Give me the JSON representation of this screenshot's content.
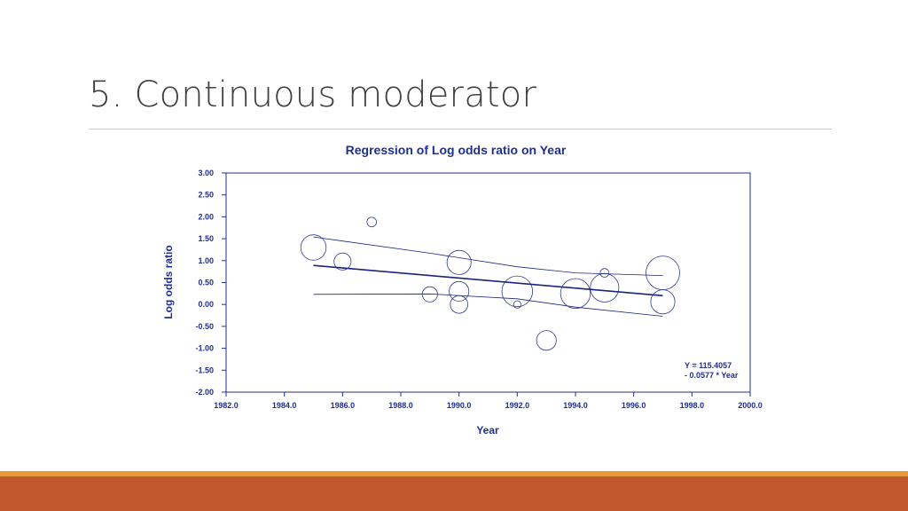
{
  "slide": {
    "title": "5.  Continuous moderator"
  },
  "chart_data": {
    "type": "scatter",
    "title": "Regression of Log odds ratio on Year",
    "xlabel": "Year",
    "ylabel": "Log odds ratio",
    "xlim": [
      1982,
      2000
    ],
    "ylim": [
      -2,
      3
    ],
    "xticks": [
      "1982.0",
      "1984.0",
      "1986.0",
      "1988.0",
      "1990.0",
      "1992.0",
      "1994.0",
      "1996.0",
      "1998.0",
      "2000.0"
    ],
    "yticks": [
      "3.00",
      "2.50",
      "2.00",
      "1.50",
      "1.00",
      "0.50",
      "0.00",
      "-0.50",
      "-1.00",
      "-1.50",
      "-2.00"
    ],
    "grid": false,
    "colors": {
      "text": "#1f2f8f",
      "marker": "#2d3a8c",
      "line": "#1a237e"
    },
    "points": [
      {
        "x": 1985.0,
        "y": 1.3,
        "weight": 0.58
      },
      {
        "x": 1986.0,
        "y": 0.98,
        "weight": 0.39
      },
      {
        "x": 1987.0,
        "y": 1.88,
        "weight": 0.22
      },
      {
        "x": 1989.0,
        "y": 0.23,
        "weight": 0.35
      },
      {
        "x": 1990.0,
        "y": 0.96,
        "weight": 0.55
      },
      {
        "x": 1990.0,
        "y": 0.3,
        "weight": 0.45
      },
      {
        "x": 1990.0,
        "y": 0.0,
        "weight": 0.4
      },
      {
        "x": 1992.0,
        "y": 0.3,
        "weight": 0.7
      },
      {
        "x": 1992.0,
        "y": 0.0,
        "weight": 0.17
      },
      {
        "x": 1993.0,
        "y": -0.82,
        "weight": 0.45
      },
      {
        "x": 1994.0,
        "y": 0.25,
        "weight": 0.68
      },
      {
        "x": 1995.0,
        "y": 0.38,
        "weight": 0.65
      },
      {
        "x": 1995.0,
        "y": 0.72,
        "weight": 0.2
      },
      {
        "x": 1997.0,
        "y": 0.72,
        "weight": 0.77
      },
      {
        "x": 1997.0,
        "y": 0.06,
        "weight": 0.55
      }
    ],
    "regression": {
      "x": [
        1985,
        1997
      ],
      "y": [
        0.89,
        0.2
      ]
    },
    "ci_upper": {
      "x": [
        1985,
        1989,
        1992,
        1994,
        1997
      ],
      "y": [
        1.54,
        1.17,
        0.86,
        0.72,
        0.66
      ]
    },
    "ci_lower": {
      "x": [
        1985,
        1989,
        1992,
        1994,
        1997
      ],
      "y": [
        0.23,
        0.24,
        0.13,
        -0.06,
        -0.27
      ]
    },
    "equation": {
      "line1": "Y = 115.4057",
      "line2": "- 0.0577 * Year"
    }
  }
}
